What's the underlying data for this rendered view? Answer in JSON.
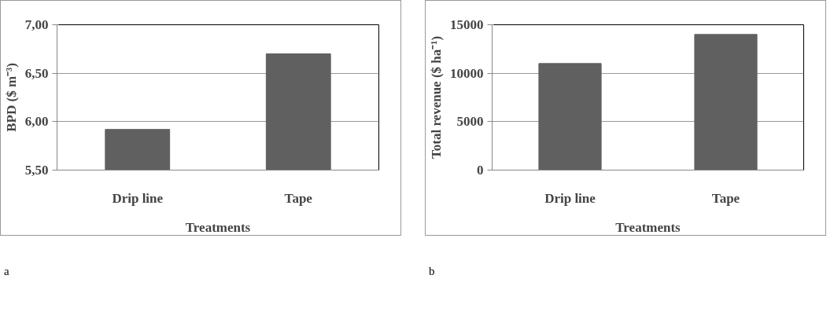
{
  "chart_data": [
    {
      "type": "bar",
      "categories": [
        "Drip line",
        "Tape"
      ],
      "values": [
        5.92,
        6.7
      ],
      "color": "#606060",
      "ylabel": "BPD ($ m⁻³)",
      "xlabel": "Treatments",
      "ylim": [
        5.5,
        7.0
      ],
      "yticks": [
        {
          "value": 5.5,
          "label": "5,50"
        },
        {
          "value": 6.0,
          "label": "6,00"
        },
        {
          "value": 6.5,
          "label": "6,50"
        },
        {
          "value": 7.0,
          "label": "7,00"
        }
      ],
      "grid": "y",
      "annotations": [
        "a"
      ]
    },
    {
      "type": "bar",
      "categories": [
        "Drip line",
        "Tape"
      ],
      "values": [
        11000,
        14000
      ],
      "color": "#606060",
      "ylabel": "Total revenue ($ ha⁻¹)",
      "xlabel": "Treatments",
      "ylim": [
        0,
        15000
      ],
      "yticks": [
        0,
        5000,
        10000,
        15000
      ],
      "grid": "y",
      "annotations": [
        "b"
      ]
    }
  ]
}
